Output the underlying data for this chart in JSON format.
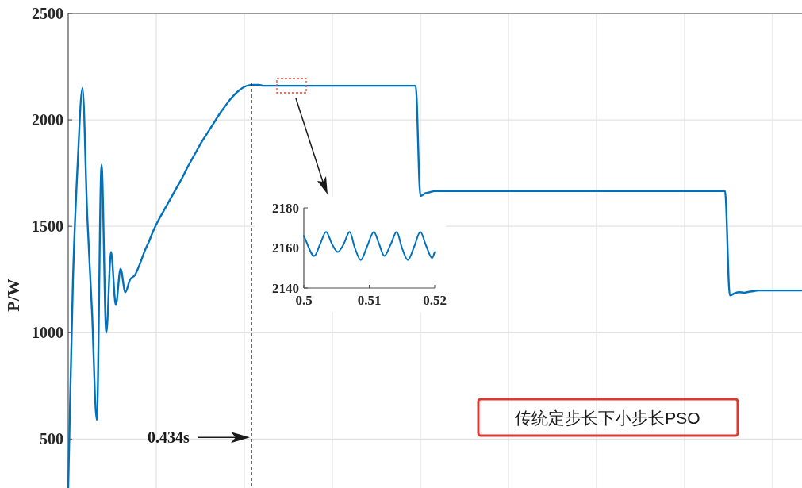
{
  "chart_data": [
    {
      "type": "line",
      "ylabel": "P/W",
      "ylim": [
        270,
        2500
      ],
      "yticks": [
        500,
        1000,
        1500,
        2000,
        2500
      ],
      "grid": true,
      "tick_labels": "y",
      "categories": [
        null,
        null,
        null,
        null,
        null,
        null,
        null,
        null,
        null,
        null,
        null,
        null,
        null,
        null,
        null,
        null,
        null,
        null,
        null,
        null,
        null,
        null,
        null,
        null,
        null,
        null,
        null,
        null,
        null,
        null,
        null,
        null,
        null,
        null,
        null,
        null,
        null,
        null,
        null,
        null,
        null,
        null,
        null,
        null,
        null,
        null,
        null,
        null,
        null,
        null,
        null,
        null,
        null,
        null,
        null,
        null,
        null,
        null,
        null,
        null,
        null,
        null,
        null,
        null,
        null,
        null,
        null,
        null,
        null,
        null,
        null,
        null,
        null,
        null,
        null,
        null,
        null,
        null,
        null,
        null,
        null,
        null,
        null,
        null,
        null,
        null,
        null,
        null,
        null,
        null,
        null,
        null,
        null,
        null,
        null,
        null,
        null,
        null,
        null,
        null,
        null,
        null,
        null,
        null,
        null,
        null,
        null,
        null,
        null,
        null,
        null,
        null,
        null,
        null,
        null,
        null,
        null,
        null,
        null,
        null,
        null,
        null,
        null,
        null,
        null,
        null,
        null,
        null,
        null,
        null,
        null,
        null,
        null,
        null,
        null,
        null,
        null,
        null,
        null,
        null,
        null,
        null,
        null,
        null,
        null,
        null,
        null,
        null,
        null,
        null,
        null,
        null,
        null,
        null,
        null
      ],
      "series": [
        {
          "color": "#0072bd",
          "values": [
            270,
            1250,
            1800,
            2150,
            1550,
            1100,
            590,
            1790,
            1000,
            1380,
            1130,
            1300,
            1190,
            1250,
            1270,
            1320,
            1380,
            1430,
            1485,
            1530,
            1570,
            1610,
            1650,
            1690,
            1730,
            1775,
            1815,
            1855,
            1895,
            1930,
            1965,
            2000,
            2035,
            2065,
            2095,
            2120,
            2140,
            2155,
            2163,
            2165,
            2165,
            2160,
            2160,
            2160,
            2160,
            2160,
            2160,
            2160,
            2160,
            2160,
            2160,
            2160,
            2160,
            2160,
            2160,
            2160,
            2160,
            2160,
            2160,
            2160,
            2160,
            2160,
            2160,
            2160,
            2160,
            2160,
            2160,
            2160,
            2160,
            2160,
            2160,
            2160,
            2160,
            2160,
            1642,
            1655,
            1660,
            1665,
            1665,
            1665,
            1665,
            1665,
            1665,
            1665,
            1665,
            1665,
            1665,
            1665,
            1665,
            1665,
            1665,
            1665,
            1665,
            1665,
            1665,
            1665,
            1665,
            1665,
            1665,
            1665,
            1665,
            1665,
            1665,
            1665,
            1665,
            1665,
            1665,
            1665,
            1665,
            1665,
            1665,
            1665,
            1665,
            1665,
            1665,
            1665,
            1665,
            1665,
            1665,
            1665,
            1665,
            1665,
            1665,
            1665,
            1665,
            1665,
            1665,
            1665,
            1665,
            1665,
            1665,
            1665,
            1665,
            1665,
            1665,
            1665,
            1665,
            1665,
            1665,
            1175,
            1185,
            1190,
            1188,
            1192,
            1195,
            1198,
            1198,
            1198,
            1198,
            1198,
            1198,
            1198,
            1198,
            1198,
            1198
          ]
        }
      ],
      "annotations": [
        "0.434s",
        "传统定步长下小步长PSO"
      ]
    },
    {
      "type": "line",
      "xlim": [
        0.5,
        0.52
      ],
      "xticks": [
        0.5,
        0.51,
        0.52
      ],
      "ylim": [
        2140,
        2180
      ],
      "yticks": [
        2140,
        2160,
        2180
      ],
      "x": [
        0.5,
        0.5016,
        0.5025,
        0.5034,
        0.5043,
        0.5052,
        0.5061,
        0.507,
        0.5078,
        0.5087,
        0.5097,
        0.5107,
        0.5115,
        0.5123,
        0.5133,
        0.5142,
        0.515,
        0.5159,
        0.5169,
        0.5178,
        0.5187,
        0.5196,
        0.52
      ],
      "series": [
        {
          "color": "#0072bd",
          "values": [
            2166,
            2156,
            2162,
            2168,
            2162,
            2158,
            2162,
            2168,
            2160,
            2154,
            2161,
            2168,
            2162,
            2156,
            2162,
            2168,
            2160,
            2154,
            2161,
            2168,
            2161,
            2155,
            2158
          ]
        }
      ]
    }
  ]
}
